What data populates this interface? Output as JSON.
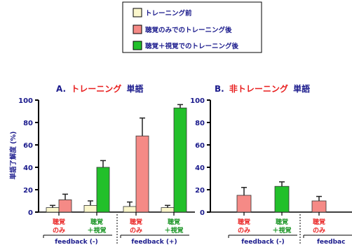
{
  "colors": {
    "series1": "#fbf7cc",
    "series2": "#f58a86",
    "series3": "#22c02a",
    "axis": "#000000",
    "text_blue": "#1a1a8c",
    "text_red": "#e81c1c",
    "text_green": "#0f8f1a"
  },
  "chart_data": [
    {
      "type": "bar",
      "title_prefix": "A.",
      "title_main": "トレーニング",
      "title_suffix": "単語",
      "ylabel": "単語了解度 (%)",
      "ylim": [
        0,
        100
      ],
      "yticks": [
        0,
        20,
        40,
        60,
        80,
        100
      ],
      "legend": [
        "トレーニング前",
        "聴覚のみでのトレーニング後",
        "聴覚＋視覚でのトレーニング後"
      ],
      "groups": [
        {
          "label": "feedback (-)",
          "categories": [
            {
              "line1": "聴覚",
              "line2": "のみ",
              "color": "red",
              "bars": [
                {
                  "series": 0,
                  "value": 4,
                  "err": 2
                },
                {
                  "series": 1,
                  "value": 11,
                  "err": 5
                }
              ]
            },
            {
              "line1": "聴覚",
              "line2": "＋視覚",
              "color": "green",
              "bars": [
                {
                  "series": 0,
                  "value": 6,
                  "err": 4
                },
                {
                  "series": 2,
                  "value": 40,
                  "err": 6
                }
              ]
            }
          ]
        },
        {
          "label": "feedback (+)",
          "categories": [
            {
              "line1": "聴覚",
              "line2": "のみ",
              "color": "red",
              "bars": [
                {
                  "series": 0,
                  "value": 5,
                  "err": 4
                },
                {
                  "series": 1,
                  "value": 68,
                  "err": 16
                }
              ]
            },
            {
              "line1": "聴覚",
              "line2": "＋視覚",
              "color": "green",
              "bars": [
                {
                  "series": 0,
                  "value": 4,
                  "err": 2
                },
                {
                  "series": 2,
                  "value": 93,
                  "err": 3
                }
              ]
            }
          ]
        }
      ]
    },
    {
      "type": "bar",
      "title_prefix": "B.",
      "title_main": "非トレーニング",
      "title_suffix": "単語",
      "ylim": [
        0,
        100
      ],
      "yticks": [
        0,
        20,
        40,
        60,
        80,
        100
      ],
      "groups": [
        {
          "label": "feedback (-)",
          "categories": [
            {
              "line1": "聴覚",
              "line2": "のみ",
              "color": "red",
              "bars": [
                {
                  "series": 1,
                  "value": 15,
                  "err": 7
                }
              ]
            },
            {
              "line1": "聴覚",
              "line2": "＋視覚",
              "color": "green",
              "bars": [
                {
                  "series": 2,
                  "value": 23,
                  "err": 4
                }
              ]
            }
          ]
        },
        {
          "label": "feedbac",
          "categories": [
            {
              "line1": "聴覚",
              "line2": "のみ",
              "color": "red",
              "bars": [
                {
                  "series": 1,
                  "value": 10,
                  "err": 4
                }
              ]
            },
            {
              "line1": "",
              "line2": "＋",
              "color": "green",
              "bars": []
            }
          ]
        }
      ]
    }
  ]
}
